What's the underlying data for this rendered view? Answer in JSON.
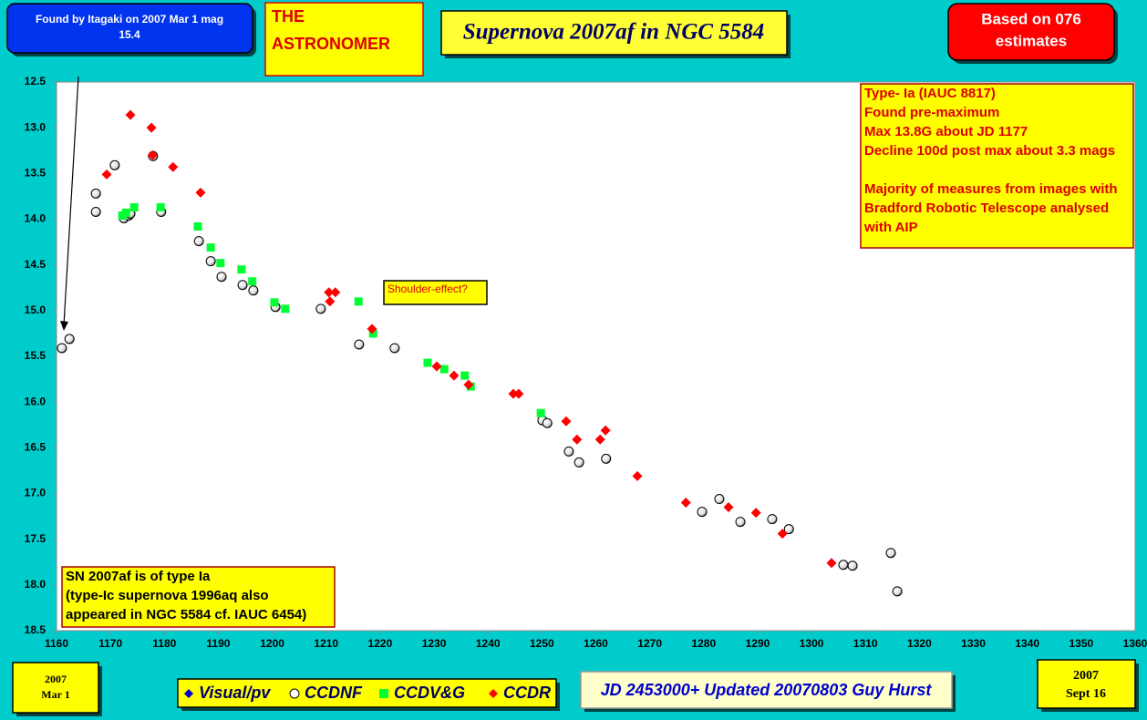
{
  "chart_data": {
    "type": "scatter",
    "title": "Supernova 2007af in NGC 5584",
    "found_note": [
      "Found by  Itagaki on 2007 Mar 1 mag",
      "15.4"
    ],
    "publisher": [
      "THE",
      "ASTRONOMER"
    ],
    "estimates_note": [
      "Based on 076",
      "estimates"
    ],
    "type_notes": [
      "Type- Ia (IAUC 8817)",
      "Found pre-maximum",
      "Max 13.8G about JD 1177",
      "Decline 100d post max about 3.3 mags"
    ],
    "source_notes": [
      "Majority of measures from images with",
      "Bradford Robotic Telescope analysed",
      "with AIP"
    ],
    "shoulder_note": "Shoulder-effect?",
    "type_box": [
      "SN 2007af is of type Ia",
      "(type-Ic supernova 1996aq also",
      "appeared in NGC 5584 cf. IAUC 6454)"
    ],
    "start_date": [
      "2007",
      "Mar 1"
    ],
    "end_date": [
      "2007",
      "Sept 16"
    ],
    "footer": "JD 2453000+ Updated 20070803 Guy Hurst",
    "xlim": [
      1160,
      1360
    ],
    "xticks": [
      1160,
      1170,
      1180,
      1190,
      1200,
      1210,
      1220,
      1230,
      1240,
      1250,
      1260,
      1270,
      1280,
      1290,
      1300,
      1310,
      1320,
      1330,
      1340,
      1350,
      1360
    ],
    "ylim": [
      12.5,
      18.5
    ],
    "y_inverted": true,
    "yticks": [
      12.5,
      {
        "value": 13,
        "label": "13.0"
      },
      13.5,
      {
        "value": 14,
        "label": "14.0"
      },
      14.5,
      {
        "value": 15,
        "label": "15.0"
      },
      15.5,
      {
        "value": 16,
        "label": "16.0"
      },
      16.5,
      {
        "value": 17,
        "label": "17.0"
      },
      17.5,
      {
        "value": 18,
        "label": "18.0"
      },
      18.5
    ],
    "series": [
      {
        "name": "Visual/pv",
        "color": "#0000cc",
        "marker": "diamond",
        "x": [],
        "values": []
      },
      {
        "name": "CCDNF",
        "color": "#ffffff",
        "marker": "circle",
        "x": [
          1161.0,
          1162.4,
          1167.3,
          1167.3,
          1170.8,
          1172.5,
          1173.4,
          1173.7,
          1177.9,
          1179.4,
          1186.4,
          1188.6,
          1190.6,
          1194.5,
          1196.5,
          1200.6,
          1209.0,
          1216.1,
          1222.7,
          1250.1,
          1251.0,
          1255.0,
          1256.9,
          1261.9,
          1282.9,
          1279.7,
          1286.8,
          1292.7,
          1295.8,
          1305.9,
          1307.6,
          1314.7,
          1315.9
        ],
        "values": [
          15.41,
          15.31,
          13.72,
          13.92,
          13.41,
          13.99,
          13.96,
          13.94,
          13.31,
          13.92,
          14.24,
          14.46,
          14.63,
          14.72,
          14.78,
          14.96,
          14.98,
          15.37,
          15.41,
          16.2,
          16.23,
          16.54,
          16.66,
          16.62,
          17.06,
          17.2,
          17.31,
          17.28,
          17.39,
          17.78,
          17.79,
          17.65,
          18.07
        ]
      },
      {
        "name": "CCDV&G",
        "color": "#00ff33",
        "marker": "square",
        "x": [
          1172.2,
          1172.9,
          1174.4,
          1179.3,
          1186.2,
          1188.6,
          1190.4,
          1194.3,
          1196.3,
          1200.4,
          1202.4,
          1216.0,
          1218.7,
          1228.8,
          1231.9,
          1235.7,
          1236.8,
          1249.8
        ],
        "values": [
          13.96,
          13.93,
          13.87,
          13.87,
          14.08,
          14.31,
          14.48,
          14.55,
          14.68,
          14.91,
          14.98,
          14.9,
          15.25,
          15.57,
          15.64,
          15.71,
          15.83,
          16.12
        ]
      },
      {
        "name": "CCDR",
        "color": "#ff0000",
        "marker": "diamond",
        "x": [
          1169.3,
          1173.7,
          1177.6,
          1177.8,
          1181.6,
          1186.7,
          1210.5,
          1211.7,
          1210.7,
          1218.5,
          1230.5,
          1233.7,
          1236.4,
          1244.7,
          1245.7,
          1254.5,
          1256.5,
          1260.8,
          1261.8,
          1267.7,
          1276.7,
          1284.6,
          1289.7,
          1294.6,
          1303.7
        ],
        "values": [
          13.51,
          12.86,
          13.0,
          13.3,
          13.43,
          13.71,
          14.8,
          14.8,
          14.9,
          15.2,
          15.61,
          15.71,
          15.81,
          15.91,
          15.91,
          16.21,
          16.41,
          16.41,
          16.31,
          16.81,
          17.1,
          17.15,
          17.21,
          17.44,
          17.76
        ]
      }
    ]
  }
}
